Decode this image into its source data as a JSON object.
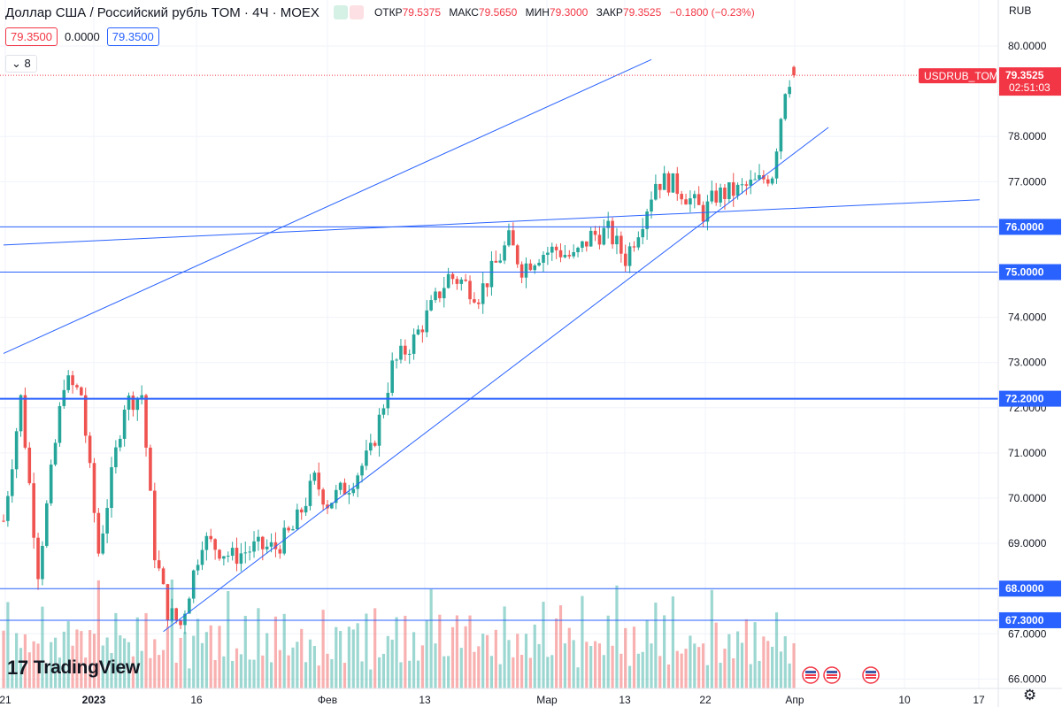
{
  "header": {
    "symbol": "Доллар США / Российский рубль TOM · 4Ч · MOEX",
    "ohlc": [
      {
        "label": "ОТКР",
        "value": "79.5375"
      },
      {
        "label": "МАКС",
        "value": "79.5650"
      },
      {
        "label": "МИН",
        "value": "79.3000"
      },
      {
        "label": "ЗАКР",
        "value": "79.3525"
      }
    ],
    "change": "−0.1800 (−0.23%)",
    "bid": "79.3500",
    "spread": "0.0000",
    "ask": "79.3500",
    "indicators_toggle": "8"
  },
  "currency_label": "RUB",
  "brand": "TradingView",
  "colors": {
    "up": "#26a69a",
    "down": "#ef5350",
    "line": "#2962ff",
    "last": "#f23645"
  },
  "chart_data": {
    "type": "candlestick",
    "title": "Доллар США / Российский рубль TOM · 4Ч · MOEX",
    "ylim": [
      65.9,
      81.0
    ],
    "y_ticks": [
      "80.0000",
      "78.0000",
      "77.0000",
      "76.0000",
      "75.0000",
      "74.0000",
      "73.0000",
      "72.0000",
      "71.0000",
      "70.0000",
      "69.0000",
      "68.0000",
      "67.0000",
      "66.0000"
    ],
    "x_ticks": [
      "21",
      "2023",
      "16",
      "Фев",
      "13",
      "Мар",
      "13",
      "22",
      "Апр",
      "10",
      "17"
    ],
    "last_price": {
      "symbol": "USDRUB_TOM",
      "value": "79.3525",
      "countdown": "02:51:03"
    },
    "horizontal_levels": [
      "76.0000",
      "75.0000",
      "72.2000",
      "68.0000",
      "67.3000"
    ],
    "trend_anchors": [
      {
        "name": "upper-channel",
        "points": [
          [
            0,
            73.2
          ],
          [
            150,
            79.7
          ]
        ]
      },
      {
        "name": "support-trend",
        "points": [
          [
            37,
            67.05
          ],
          [
            191,
            78.2
          ]
        ]
      },
      {
        "name": "resistance-trend",
        "points": [
          [
            0,
            75.6
          ],
          [
            226,
            76.6
          ]
        ]
      }
    ],
    "path_points": [
      [
        0,
        69.5
      ],
      [
        4,
        72.2
      ],
      [
        8,
        68.4
      ],
      [
        14,
        72.6
      ],
      [
        18,
        72.3
      ],
      [
        22,
        68.8
      ],
      [
        28,
        72.1
      ],
      [
        32,
        72.3
      ],
      [
        35,
        68.8
      ],
      [
        38,
        67.5
      ],
      [
        41,
        67.2
      ],
      [
        46,
        69.1
      ],
      [
        53,
        68.7
      ],
      [
        58,
        68.9
      ],
      [
        63,
        68.9
      ],
      [
        67,
        69.3
      ],
      [
        72,
        70.4
      ],
      [
        75,
        69.9
      ],
      [
        80,
        70.3
      ],
      [
        85,
        71.0
      ],
      [
        88,
        72.1
      ],
      [
        90,
        72.9
      ],
      [
        95,
        73.5
      ],
      [
        99,
        74.2
      ],
      [
        103,
        74.9
      ],
      [
        106,
        74.8
      ],
      [
        110,
        74.5
      ],
      [
        113,
        75.0
      ],
      [
        117,
        75.7
      ],
      [
        120,
        75.1
      ],
      [
        124,
        75.4
      ],
      [
        128,
        75.5
      ],
      [
        132,
        75.3
      ],
      [
        136,
        75.8
      ],
      [
        140,
        75.9
      ],
      [
        144,
        75.3
      ],
      [
        148,
        76.2
      ],
      [
        151,
        77.0
      ],
      [
        154,
        77.0
      ],
      [
        157,
        76.8
      ],
      [
        162,
        76.3
      ],
      [
        165,
        76.7
      ],
      [
        170,
        76.8
      ],
      [
        175,
        77.0
      ],
      [
        178,
        77.2
      ],
      [
        181,
        79.1
      ],
      [
        183,
        79.5
      ]
    ],
    "volume_levels": [
      0.5,
      0.7,
      0.3,
      0.6,
      0.4,
      0.8,
      0.3,
      0.5,
      0.6,
      0.9,
      0.4,
      0.7,
      0.5,
      0.3,
      0.8,
      0.6,
      0.4,
      0.5,
      0.7,
      0.3,
      0.6,
      0.5,
      0.9,
      0.4,
      0.6,
      0.3,
      0.7,
      0.5,
      0.4,
      0.8
    ]
  }
}
